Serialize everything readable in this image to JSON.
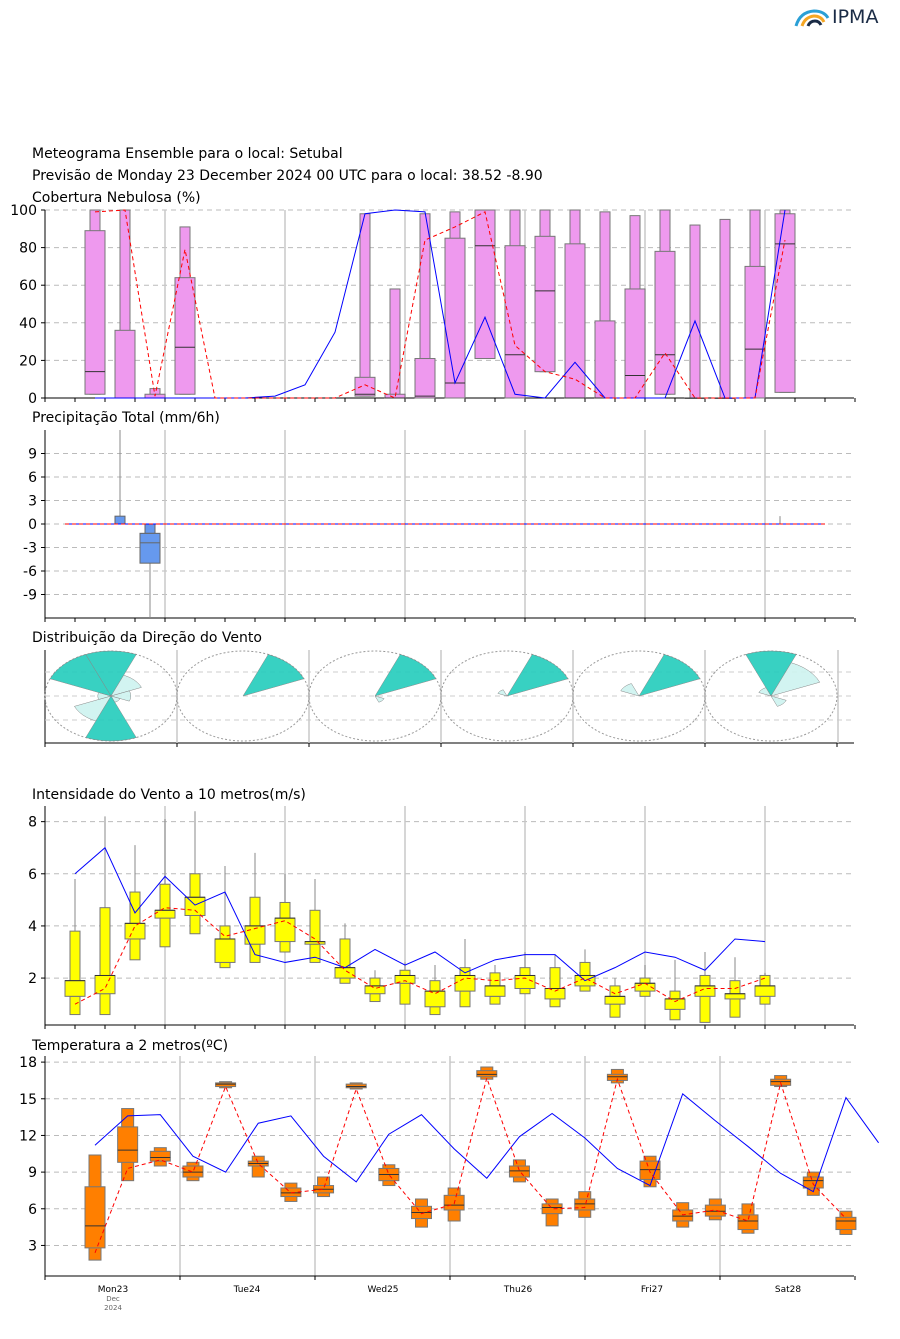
{
  "logo": {
    "text": "IPMA",
    "icon": "ipma-wave-logo"
  },
  "header": {
    "line1": "Meteograma Ensemble para o local: Setubal",
    "line2": "Previsão de Monday 23 December 2024 00 UTC para o local: 38.52 -8.90"
  },
  "colors": {
    "box_cloud": "#ee99ee",
    "box_precip": "#6699ee",
    "box_wind": "#ffff00",
    "box_temp": "#ff7f00",
    "control": "#0000ff",
    "mean": "#ff0000",
    "wind_rose": "#22ccbb"
  },
  "x_axis": {
    "day_labels": [
      "Mon23",
      "Tue24",
      "Wed25",
      "Thu26",
      "Fri27",
      "Sat28"
    ],
    "month": "Dec",
    "year": "2024"
  },
  "chart_data": [
    {
      "type": "boxplot",
      "title": "Cobertura Nebulosa (%)",
      "ylim": [
        0,
        100
      ],
      "yticks": [
        0,
        20,
        40,
        60,
        80,
        100
      ],
      "t": [
        2,
        3,
        4,
        5,
        6,
        7,
        8,
        9,
        10,
        11,
        12,
        13,
        14,
        15,
        16,
        17,
        18,
        19,
        20,
        21,
        22,
        23,
        24,
        25
      ],
      "boxes": [
        [
          2,
          2,
          14,
          89,
          100
        ],
        [
          3,
          0,
          0,
          36,
          100
        ],
        [
          4,
          0,
          0,
          2,
          5
        ],
        [
          5,
          2,
          27,
          64,
          91
        ],
        [
          11,
          1,
          2,
          11,
          98
        ],
        [
          12,
          0,
          0,
          2,
          58
        ],
        [
          13,
          0,
          1,
          21,
          98
        ],
        [
          14,
          0,
          8,
          85,
          99
        ],
        [
          15,
          21,
          81,
          100,
          100
        ],
        [
          16,
          0,
          23,
          81,
          100
        ],
        [
          17,
          14,
          57,
          86,
          100
        ],
        [
          18,
          0,
          0,
          82,
          100
        ],
        [
          19,
          0,
          0,
          41,
          99
        ],
        [
          20,
          0,
          12,
          58,
          97
        ],
        [
          21,
          2,
          23,
          78,
          100
        ],
        [
          22,
          0,
          0,
          0,
          92
        ],
        [
          23,
          0,
          0,
          0,
          95
        ],
        [
          24,
          0,
          26,
          70,
          100
        ],
        [
          25,
          3,
          82,
          98,
          100
        ]
      ],
      "control": [
        [
          2,
          0
        ],
        [
          3,
          0
        ],
        [
          4,
          0
        ],
        [
          5,
          0
        ],
        [
          6,
          0
        ],
        [
          7,
          0
        ],
        [
          8,
          1
        ],
        [
          9,
          7
        ],
        [
          10,
          35
        ],
        [
          11,
          98
        ],
        [
          12,
          100
        ],
        [
          13,
          99
        ],
        [
          14,
          8
        ],
        [
          15,
          43
        ],
        [
          16,
          2
        ],
        [
          17,
          0
        ],
        [
          18,
          19
        ],
        [
          19,
          0
        ],
        [
          20,
          0
        ],
        [
          21,
          0
        ],
        [
          22,
          41
        ],
        [
          23,
          0
        ],
        [
          24,
          0
        ],
        [
          25,
          100
        ]
      ],
      "mean": [
        [
          2,
          99
        ],
        [
          3,
          100
        ],
        [
          4,
          1
        ],
        [
          5,
          79
        ],
        [
          6,
          0
        ],
        [
          7,
          0
        ],
        [
          8,
          0
        ],
        [
          9,
          0
        ],
        [
          10,
          0
        ],
        [
          11,
          7
        ],
        [
          12,
          0
        ],
        [
          13,
          84
        ],
        [
          14,
          91
        ],
        [
          15,
          99
        ],
        [
          16,
          28
        ],
        [
          17,
          14
        ],
        [
          18,
          10
        ],
        [
          19,
          0
        ],
        [
          20,
          0
        ],
        [
          21,
          24
        ],
        [
          22,
          0
        ],
        [
          23,
          0
        ],
        [
          24,
          0
        ],
        [
          25,
          84
        ]
      ]
    },
    {
      "type": "bar",
      "title": "Precipitação Total (mm/6h)",
      "ylim": [
        -12,
        12
      ],
      "yticks": [
        -9,
        -6,
        -3,
        0,
        3,
        6,
        9
      ],
      "bars": [
        {
          "t": 3,
          "values": [
            0,
            1,
            12
          ]
        },
        {
          "t": 4,
          "values": [
            -5,
            -1.2,
            -12
          ]
        },
        {
          "t": 25,
          "values": [
            0,
            0,
            1
          ]
        }
      ],
      "control": [
        [
          1,
          0
        ],
        [
          25,
          0
        ]
      ],
      "mean": [
        [
          1,
          0
        ],
        [
          25,
          0
        ]
      ]
    },
    {
      "type": "wind_rose",
      "title": "Distribuição da Direção do Vento",
      "roses": [
        {
          "day": "Mon23",
          "sectors": [
            [
              0,
              1.0
            ],
            [
              45,
              0.5
            ],
            [
              90,
              0.3
            ],
            [
              135,
              0.15
            ],
            [
              180,
              1.0
            ],
            [
              225,
              0.6
            ],
            [
              270,
              0.2
            ],
            [
              315,
              1.0
            ]
          ]
        },
        {
          "day": "Tue24",
          "sectors": [
            [
              45,
              1.0
            ]
          ]
        },
        {
          "day": "Wed25",
          "sectors": [
            [
              45,
              1.0
            ],
            [
              135,
              0.15
            ]
          ]
        },
        {
          "day": "Thu26",
          "sectors": [
            [
              45,
              1.0
            ],
            [
              315,
              0.15
            ]
          ]
        },
        {
          "day": "Fri27",
          "sectors": [
            [
              45,
              1.0
            ],
            [
              315,
              0.3
            ]
          ]
        },
        {
          "day": "Sat28",
          "sectors": [
            [
              0,
              1.0
            ],
            [
              45,
              0.8
            ],
            [
              135,
              0.25
            ],
            [
              315,
              0.2
            ]
          ]
        }
      ]
    },
    {
      "type": "boxplot",
      "title": "Intensidade do Vento a 10 metros(m/s)",
      "ylim": [
        0.2,
        8.6
      ],
      "yticks": [
        2,
        4,
        6,
        8
      ],
      "boxes": [
        [
          1,
          0.6,
          1.3,
          1.9,
          3.8,
          5.8
        ],
        [
          2,
          0.6,
          1.4,
          2.1,
          4.7,
          8.2
        ],
        [
          3,
          2.7,
          3.5,
          4.1,
          5.3,
          7.1
        ],
        [
          4,
          3.2,
          4.3,
          4.6,
          5.6,
          8.1
        ],
        [
          5,
          3.7,
          4.4,
          5.1,
          6.0,
          8.4
        ],
        [
          6,
          2.4,
          2.6,
          3.5,
          4.0,
          6.3
        ],
        [
          7,
          2.6,
          3.3,
          4.0,
          5.1,
          6.8
        ],
        [
          8,
          3.0,
          3.4,
          4.3,
          4.9,
          6.0
        ],
        [
          9,
          2.6,
          3.3,
          3.4,
          4.6,
          5.8
        ],
        [
          10,
          1.8,
          2.0,
          2.4,
          3.5,
          4.1
        ],
        [
          11,
          1.1,
          1.4,
          1.7,
          2.0,
          2.3
        ],
        [
          12,
          1.0,
          1.8,
          2.1,
          2.3,
          2.6
        ],
        [
          13,
          0.6,
          0.9,
          1.5,
          1.9,
          2.5
        ],
        [
          14,
          0.9,
          1.5,
          2.1,
          2.4,
          3.5
        ],
        [
          15,
          1.0,
          1.3,
          1.7,
          2.2,
          2.5
        ],
        [
          16,
          1.4,
          1.6,
          2.1,
          2.4,
          3.0
        ],
        [
          17,
          0.9,
          1.2,
          1.6,
          2.4,
          2.9
        ],
        [
          18,
          1.5,
          1.7,
          2.1,
          2.6,
          3.1
        ],
        [
          19,
          0.5,
          1.0,
          1.3,
          1.7,
          2.0
        ],
        [
          20,
          1.3,
          1.5,
          1.8,
          2.0,
          2.5
        ],
        [
          21,
          0.4,
          0.8,
          1.2,
          1.5,
          2.7
        ],
        [
          22,
          0.3,
          1.3,
          1.7,
          2.1,
          3.0
        ],
        [
          23,
          0.5,
          1.2,
          1.4,
          1.9,
          2.8
        ],
        [
          24,
          1.0,
          1.3,
          1.7,
          2.1,
          2.2
        ]
      ],
      "control": [
        [
          1,
          6.0
        ],
        [
          2,
          7.0
        ],
        [
          3,
          4.5
        ],
        [
          4,
          5.9
        ],
        [
          5,
          4.8
        ],
        [
          6,
          5.3
        ],
        [
          7,
          2.9
        ],
        [
          8,
          2.6
        ],
        [
          9,
          2.8
        ],
        [
          10,
          2.4
        ],
        [
          11,
          3.1
        ],
        [
          12,
          2.5
        ],
        [
          13,
          3.0
        ],
        [
          14,
          2.2
        ],
        [
          15,
          2.7
        ],
        [
          16,
          2.9
        ],
        [
          17,
          2.9
        ],
        [
          18,
          1.9
        ],
        [
          19,
          2.4
        ],
        [
          20,
          3.0
        ],
        [
          21,
          2.8
        ],
        [
          22,
          2.3
        ],
        [
          23,
          3.5
        ],
        [
          24,
          3.4
        ]
      ],
      "mean": [
        [
          1,
          1.0
        ],
        [
          2,
          1.6
        ],
        [
          3,
          4.0
        ],
        [
          4,
          4.7
        ],
        [
          5,
          4.6
        ],
        [
          6,
          3.6
        ],
        [
          7,
          3.9
        ],
        [
          8,
          4.2
        ],
        [
          9,
          3.5
        ],
        [
          10,
          2.3
        ],
        [
          11,
          1.6
        ],
        [
          12,
          1.9
        ],
        [
          13,
          1.4
        ],
        [
          14,
          2.0
        ],
        [
          15,
          1.9
        ],
        [
          16,
          2.0
        ],
        [
          17,
          1.5
        ],
        [
          18,
          2.0
        ],
        [
          19,
          1.4
        ],
        [
          20,
          1.8
        ],
        [
          21,
          1.1
        ],
        [
          22,
          1.6
        ],
        [
          23,
          1.6
        ],
        [
          24,
          2.0
        ]
      ]
    },
    {
      "type": "boxplot",
      "title": "Temperatura a 2 metros(ºC)",
      "ylim": [
        0.5,
        18.5
      ],
      "yticks": [
        3,
        6,
        9,
        12,
        15,
        18
      ],
      "boxes": [
        [
          2,
          1.8,
          2.8,
          4.6,
          7.8,
          10.4
        ],
        [
          3,
          8.3,
          9.8,
          10.8,
          12.7,
          14.2
        ],
        [
          4,
          9.5,
          9.9,
          10.2,
          10.7,
          11.0
        ],
        [
          5,
          8.3,
          8.6,
          9.0,
          9.5,
          9.8
        ],
        [
          6,
          15.9,
          16.0,
          16.2,
          16.3,
          16.4
        ],
        [
          7,
          8.6,
          9.5,
          9.7,
          9.9,
          10.3
        ],
        [
          8,
          6.6,
          7.0,
          7.3,
          7.7,
          8.1
        ],
        [
          9,
          7.0,
          7.3,
          7.6,
          7.9,
          8.6
        ],
        [
          10,
          15.8,
          15.9,
          16.0,
          16.2,
          16.3
        ],
        [
          11,
          7.9,
          8.3,
          8.8,
          9.3,
          9.6
        ],
        [
          12,
          4.5,
          5.2,
          5.7,
          6.2,
          6.8
        ],
        [
          13,
          5.0,
          5.9,
          6.3,
          7.1,
          7.7
        ],
        [
          14,
          16.6,
          16.8,
          17.0,
          17.3,
          17.6
        ],
        [
          15,
          8.2,
          8.6,
          9.1,
          9.5,
          10.0
        ],
        [
          16,
          4.6,
          5.6,
          6.1,
          6.4,
          6.8
        ],
        [
          17,
          5.3,
          5.9,
          6.4,
          6.8,
          7.4
        ],
        [
          18,
          16.3,
          16.5,
          16.8,
          17.0,
          17.4
        ],
        [
          19,
          7.8,
          8.4,
          9.2,
          9.9,
          10.3
        ],
        [
          20,
          4.5,
          5.0,
          5.4,
          5.9,
          6.5
        ],
        [
          21,
          5.1,
          5.4,
          5.8,
          6.3,
          6.8
        ],
        [
          22,
          4.0,
          4.3,
          5.0,
          5.5,
          6.4
        ],
        [
          23,
          16.0,
          16.1,
          16.4,
          16.6,
          16.9
        ],
        [
          24,
          7.1,
          7.7,
          8.3,
          8.6,
          9.0
        ],
        [
          25,
          3.9,
          4.3,
          5.0,
          5.3,
          5.8
        ]
      ],
      "control": [
        [
          2,
          11.2
        ],
        [
          3,
          13.6
        ],
        [
          4,
          13.7
        ],
        [
          5,
          10.3
        ],
        [
          6,
          9.0
        ],
        [
          7,
          13.0
        ],
        [
          8,
          13.6
        ],
        [
          9,
          10.3
        ],
        [
          10,
          8.2
        ],
        [
          11,
          12.1
        ],
        [
          12,
          13.7
        ],
        [
          13,
          10.9
        ],
        [
          14,
          8.5
        ],
        [
          15,
          11.9
        ],
        [
          16,
          13.8
        ],
        [
          17,
          11.8
        ],
        [
          18,
          9.3
        ],
        [
          19,
          7.9
        ],
        [
          20,
          15.4
        ],
        [
          21,
          13.2
        ],
        [
          22,
          11.1
        ],
        [
          23,
          8.9
        ],
        [
          24,
          7.4
        ],
        [
          25,
          15.1
        ],
        [
          26,
          11.4
        ]
      ],
      "mean": [
        [
          2,
          2.4
        ],
        [
          3,
          9.3
        ],
        [
          4,
          10.0
        ],
        [
          5,
          9.0
        ],
        [
          6,
          16.0
        ],
        [
          7,
          9.7
        ],
        [
          8,
          7.3
        ],
        [
          9,
          7.6
        ],
        [
          10,
          15.8
        ],
        [
          11,
          8.8
        ],
        [
          12,
          5.6
        ],
        [
          13,
          6.4
        ],
        [
          14,
          16.7
        ],
        [
          15,
          9.1
        ],
        [
          16,
          6.0
        ],
        [
          17,
          6.1
        ],
        [
          18,
          16.6
        ],
        [
          19,
          9.0
        ],
        [
          20,
          5.5
        ],
        [
          21,
          5.9
        ],
        [
          22,
          5.0
        ],
        [
          23,
          16.3
        ],
        [
          24,
          8.0
        ],
        [
          25,
          5.2
        ]
      ]
    }
  ]
}
